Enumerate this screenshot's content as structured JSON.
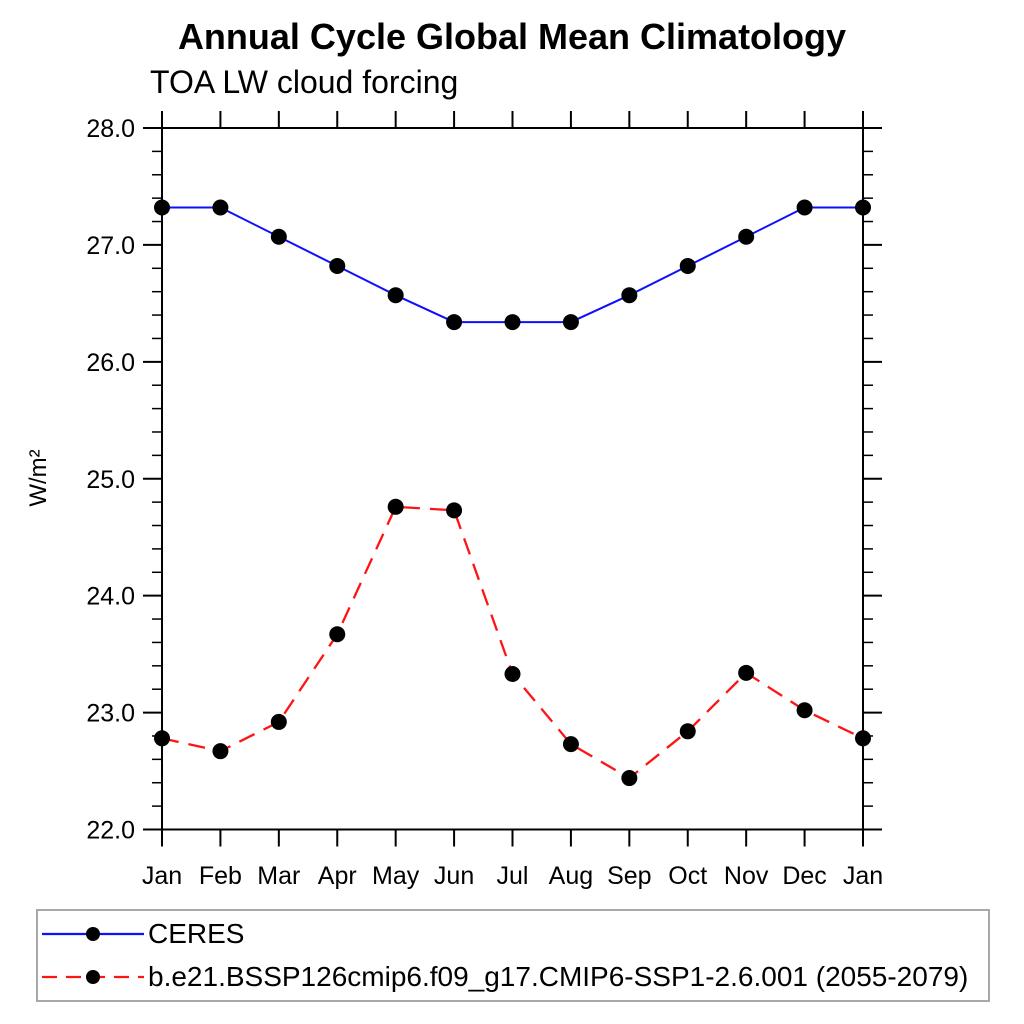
{
  "page": {
    "background": "#ffffff"
  },
  "chart_data": {
    "type": "line",
    "title": "Annual Cycle Global Mean Climatology",
    "subtitle": "TOA LW cloud forcing",
    "ylabel": "W/m²",
    "x_categories": [
      "Jan",
      "Feb",
      "Mar",
      "Apr",
      "May",
      "Jun",
      "Jul",
      "Aug",
      "Sep",
      "Oct",
      "Nov",
      "Dec",
      "Jan"
    ],
    "ylim": [
      22.0,
      28.0
    ],
    "y_major_tick_step": 1.0,
    "y_minor_tick_step": 0.2,
    "y_tick_labels": [
      "22.0",
      "23.0",
      "24.0",
      "25.0",
      "26.0",
      "27.0",
      "28.0"
    ],
    "grid": false,
    "ticks": "outward-all-four-sides",
    "legend_position": "bottom-left-box",
    "axis_color": "#000000",
    "marker": "filled-circle",
    "series": [
      {
        "name": "CERES",
        "color": "#0f0fff",
        "line_style": "solid",
        "marker_color": "#000000",
        "values": [
          27.32,
          27.32,
          27.07,
          26.82,
          26.57,
          26.34,
          26.34,
          26.34,
          26.57,
          26.82,
          27.07,
          27.32,
          27.32
        ]
      },
      {
        "name": "b.e21.BSSP126cmip6.f09_g17.CMIP6-SSP1-2.6.001 (2055-2079)",
        "color": "#ff1414",
        "line_style": "dashed",
        "marker_color": "#000000",
        "values": [
          22.78,
          22.67,
          22.92,
          23.67,
          24.76,
          24.73,
          23.33,
          22.73,
          22.44,
          22.84,
          23.34,
          23.02,
          22.78
        ]
      }
    ]
  }
}
